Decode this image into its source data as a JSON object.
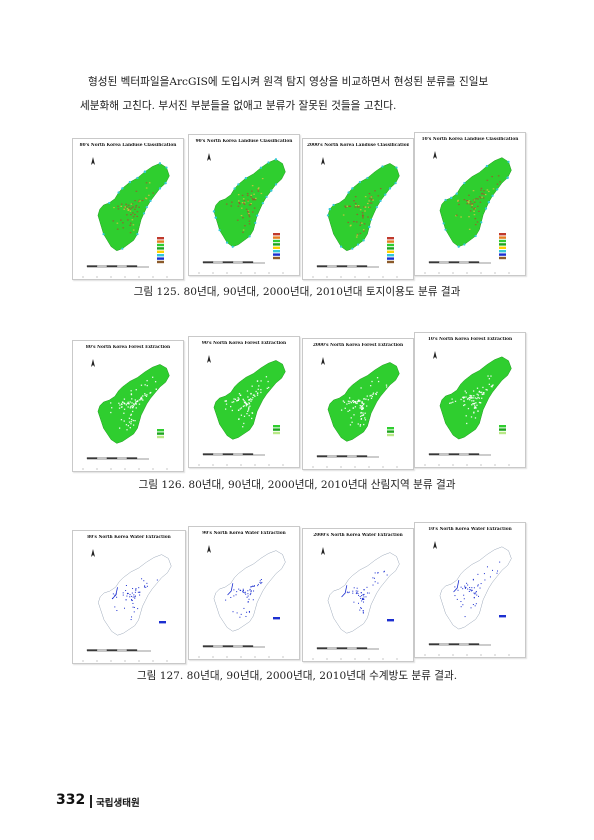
{
  "intro": {
    "line1": "형성된 벡터파일을ArcGIS에 도입시켜 원격 탐지 영상을 비교하면서 현성된 분류를 진일보",
    "line2": "세분화해 고친다. 부서진 부분들을 없애고 분류가 잘못된 것들을 고친다."
  },
  "figures": [
    {
      "kind": "landuse",
      "caption": "그림 125. 80년대, 90년대, 2000년대, 2010년대 토지이용도 분류 결과",
      "maps": [
        {
          "title": "80's North Korea Landuse Classification"
        },
        {
          "title": "90's North Korea Landuse Classification"
        },
        {
          "title": "2000's North Korea Landuse Classification"
        },
        {
          "title": "10's North Korea Landuse Classification"
        }
      ]
    },
    {
      "kind": "forest",
      "caption": "그림 126. 80년대, 90년대, 2000년대, 2010년대 산림지역 분류 결과",
      "maps": [
        {
          "title": "80's North Korea Forest Extraction"
        },
        {
          "title": "90's North Korea Forest Extraction"
        },
        {
          "title": "2000's North Korea Forest Extraction"
        },
        {
          "title": "10's North Korea Forest Extraction"
        }
      ]
    },
    {
      "kind": "water",
      "caption": "그림 127. 80년대, 90년대, 2000년대, 2010년대 수계방도 분류 결과.",
      "maps": [
        {
          "title": "80's North Korea Water Extraction"
        },
        {
          "title": "90's North Korea Water Extraction"
        },
        {
          "title": "2000's North Korea Water Extraction"
        },
        {
          "title": "10's North Korea Water Extraction"
        }
      ]
    }
  ],
  "footer": {
    "page_number": "332",
    "organization": "국립생태원"
  },
  "colors": {
    "vegetation": "#2fce2f",
    "water": "#1c2fd0",
    "urban": "#a0522d",
    "coast": "#35c9d6"
  }
}
